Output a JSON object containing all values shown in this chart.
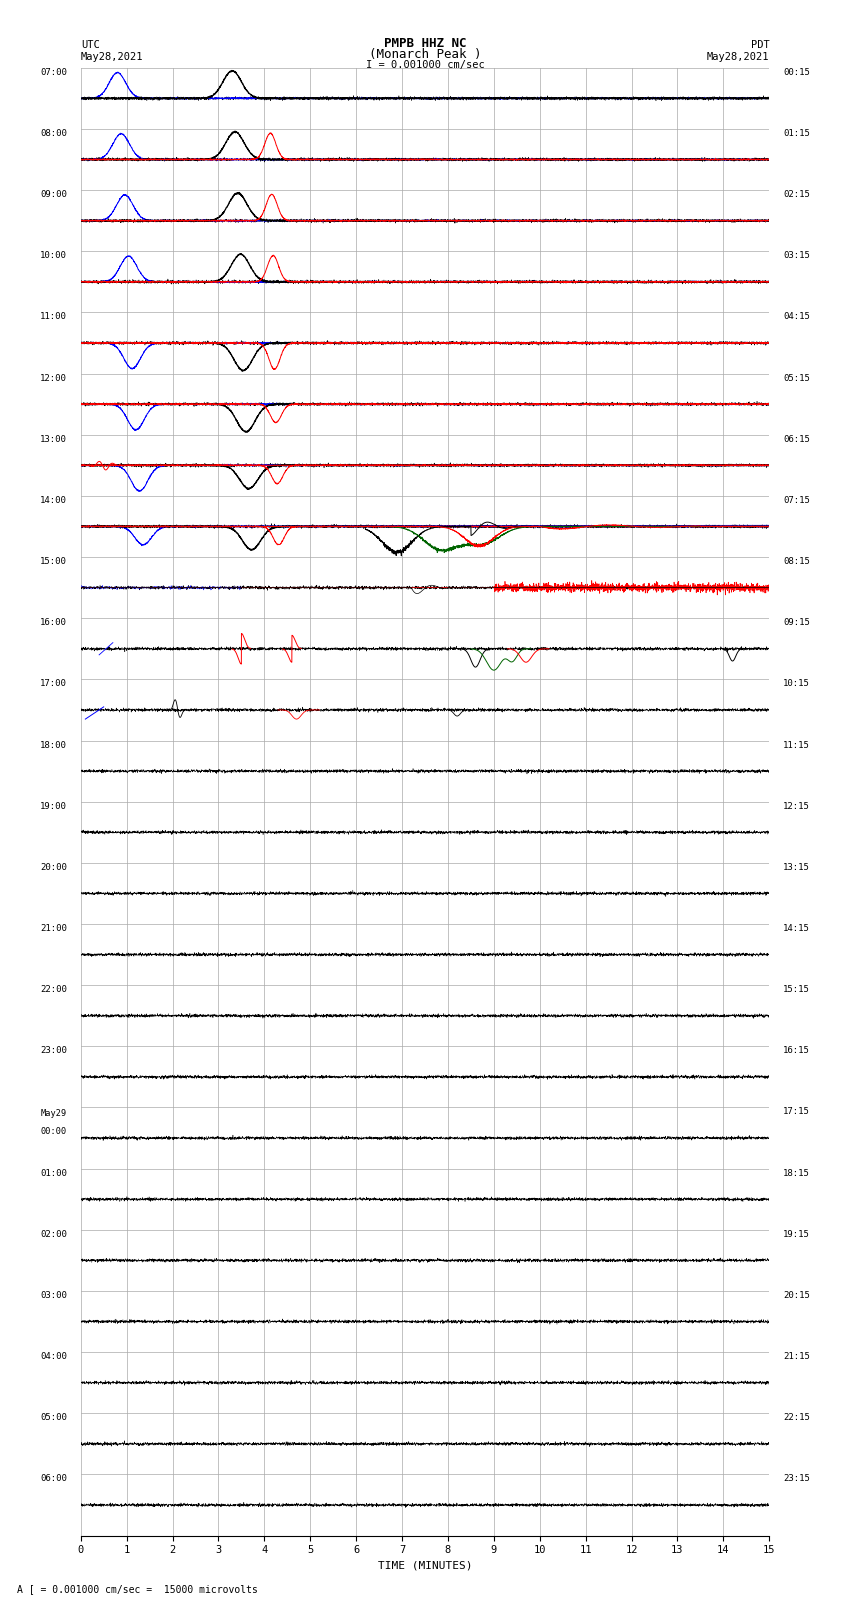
{
  "title_line1": "PMPB HHZ NC",
  "title_line2": "(Monarch Peak )",
  "scale_label": "I = 0.001000 cm/sec",
  "bottom_label": "A [ = 0.001000 cm/sec =  15000 microvolts",
  "utc_label": "UTC",
  "pdt_label": "PDT",
  "date_left": "May28,2021",
  "date_right": "May28,2021",
  "xlabel": "TIME (MINUTES)",
  "background_color": "#ffffff",
  "grid_color": "#aaaaaa",
  "row_labels_left": [
    "07:00",
    "08:00",
    "09:00",
    "10:00",
    "11:00",
    "12:00",
    "13:00",
    "14:00",
    "15:00",
    "16:00",
    "17:00",
    "18:00",
    "19:00",
    "20:00",
    "21:00",
    "22:00",
    "23:00",
    "May29\n00:00",
    "01:00",
    "02:00",
    "03:00",
    "04:00",
    "05:00",
    "06:00"
  ],
  "row_labels_right": [
    "00:15",
    "01:15",
    "02:15",
    "03:15",
    "04:15",
    "05:15",
    "06:15",
    "07:15",
    "08:15",
    "09:15",
    "10:15",
    "11:15",
    "12:15",
    "13:15",
    "14:15",
    "15:15",
    "16:15",
    "17:15",
    "18:15",
    "19:15",
    "20:15",
    "21:15",
    "22:15",
    "23:15"
  ]
}
